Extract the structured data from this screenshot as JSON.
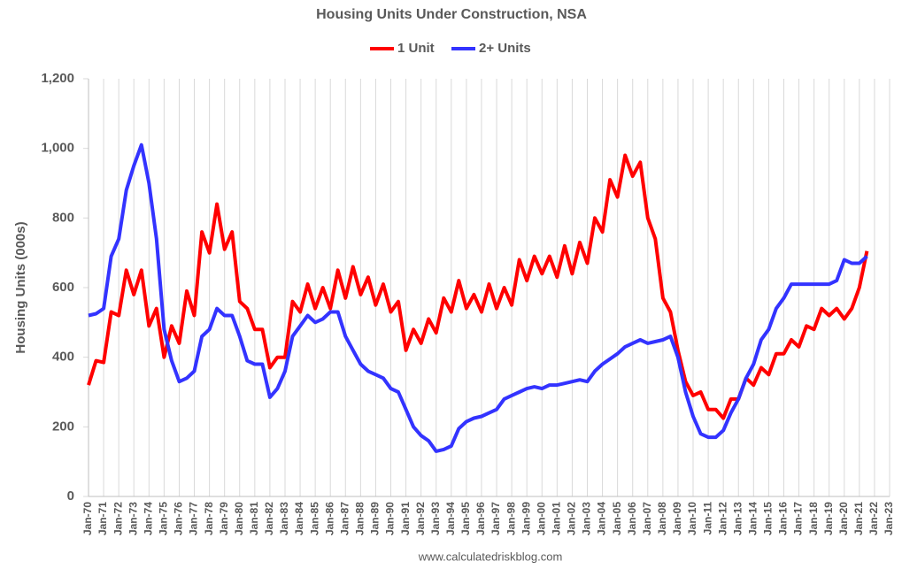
{
  "chart_data": {
    "type": "line",
    "title": "Housing Units Under Construction, NSA",
    "y_label": "Housing Units (000s)",
    "source": "www.calculatedriskblog.com",
    "legend": "top",
    "grid": true,
    "ylim": [
      0,
      1200
    ],
    "yticks": [
      0,
      200,
      400,
      600,
      800,
      {
        "value": 1000,
        "label": "1,000"
      },
      {
        "value": 1200,
        "label": "1,200"
      }
    ],
    "xticks": [
      "Jan-70",
      "Jan-71",
      "Jan-72",
      "Jan-73",
      "Jan-74",
      "Jan-75",
      "Jan-76",
      "Jan-77",
      "Jan-78",
      "Jan-79",
      "Jan-80",
      "Jan-81",
      "Jan-82",
      "Jan-83",
      "Jan-84",
      "Jan-85",
      "Jan-86",
      "Jan-87",
      "Jan-88",
      "Jan-89",
      "Jan-90",
      "Jan-91",
      "Jan-92",
      "Jan-93",
      "Jan-94",
      "Jan-95",
      "Jan-96",
      "Jan-97",
      "Jan-98",
      "Jan-99",
      "Jan-00",
      "Jan-01",
      "Jan-02",
      "Jan-03",
      "Jan-04",
      "Jan-05",
      "Jan-06",
      "Jan-07",
      "Jan-08",
      "Jan-09",
      "Jan-10",
      "Jan-11",
      "Jan-12",
      "Jan-13",
      "Jan-14",
      "Jan-15",
      "Jan-16",
      "Jan-17",
      "Jan-18",
      "Jan-19",
      "Jan-20",
      "Jan-21",
      "Jan-22",
      "Jan-23"
    ],
    "x": [
      "Jan-70",
      "Jul-70",
      "Jan-71",
      "Jul-71",
      "Jan-72",
      "Jul-72",
      "Jan-73",
      "Jul-73",
      "Jan-74",
      "Jul-74",
      "Jan-75",
      "Jul-75",
      "Jan-76",
      "Jul-76",
      "Jan-77",
      "Jul-77",
      "Jan-78",
      "Jul-78",
      "Jan-79",
      "Jul-79",
      "Jan-80",
      "Jul-80",
      "Jan-81",
      "Jul-81",
      "Jan-82",
      "Jul-82",
      "Jan-83",
      "Jul-83",
      "Jan-84",
      "Jul-84",
      "Jan-85",
      "Jul-85",
      "Jan-86",
      "Jul-86",
      "Jan-87",
      "Jul-87",
      "Jan-88",
      "Jul-88",
      "Jan-89",
      "Jul-89",
      "Jan-90",
      "Jul-90",
      "Jan-91",
      "Jul-91",
      "Jan-92",
      "Jul-92",
      "Jan-93",
      "Jul-93",
      "Jan-94",
      "Jul-94",
      "Jan-95",
      "Jul-95",
      "Jan-96",
      "Jul-96",
      "Jan-97",
      "Jul-97",
      "Jan-98",
      "Jul-98",
      "Jan-99",
      "Jul-99",
      "Jan-00",
      "Jul-00",
      "Jan-01",
      "Jul-01",
      "Jan-02",
      "Jul-02",
      "Jan-03",
      "Jul-03",
      "Jan-04",
      "Jul-04",
      "Jan-05",
      "Jul-05",
      "Jan-06",
      "Jul-06",
      "Jan-07",
      "Jul-07",
      "Jan-08",
      "Jul-08",
      "Jan-09",
      "Jul-09",
      "Jan-10",
      "Jul-10",
      "Jan-11",
      "Jul-11",
      "Jan-12",
      "Jul-12",
      "Jan-13",
      "Jul-13",
      "Jan-14",
      "Jul-14",
      "Jan-15",
      "Jul-15",
      "Jan-16",
      "Jul-16",
      "Jan-17",
      "Jul-17",
      "Jan-18",
      "Jul-18",
      "Jan-19",
      "Jul-19",
      "Jan-20",
      "Jul-20",
      "Jan-21",
      "Jul-21"
    ],
    "series": [
      {
        "name": "1 Unit",
        "color": "#ff0000",
        "values": [
          320,
          390,
          385,
          530,
          520,
          650,
          580,
          650,
          490,
          540,
          400,
          490,
          440,
          590,
          520,
          760,
          700,
          840,
          710,
          760,
          560,
          540,
          480,
          480,
          370,
          400,
          400,
          560,
          530,
          610,
          540,
          600,
          540,
          650,
          570,
          660,
          580,
          630,
          550,
          610,
          530,
          560,
          420,
          480,
          440,
          510,
          470,
          570,
          530,
          620,
          540,
          580,
          530,
          610,
          540,
          600,
          550,
          680,
          620,
          690,
          640,
          690,
          630,
          720,
          640,
          730,
          670,
          800,
          760,
          910,
          860,
          980,
          920,
          960,
          800,
          740,
          570,
          530,
          420,
          330,
          290,
          300,
          250,
          250,
          225,
          280,
          280,
          340,
          320,
          370,
          350,
          410,
          410,
          450,
          430,
          490,
          480,
          540,
          520,
          540,
          510,
          540,
          600,
          705
        ]
      },
      {
        "name": "2+ Units",
        "color": "#3333ff",
        "values": [
          520,
          525,
          540,
          690,
          740,
          880,
          950,
          1010,
          900,
          740,
          480,
          390,
          330,
          340,
          360,
          460,
          480,
          540,
          520,
          520,
          460,
          390,
          380,
          380,
          285,
          310,
          360,
          460,
          490,
          520,
          500,
          510,
          530,
          530,
          460,
          420,
          380,
          360,
          350,
          340,
          310,
          300,
          250,
          200,
          175,
          160,
          130,
          135,
          145,
          195,
          215,
          225,
          230,
          240,
          250,
          280,
          290,
          300,
          310,
          315,
          310,
          320,
          320,
          325,
          330,
          335,
          330,
          360,
          380,
          395,
          410,
          430,
          440,
          450,
          440,
          445,
          450,
          460,
          400,
          300,
          230,
          180,
          170,
          170,
          190,
          240,
          280,
          340,
          380,
          450,
          480,
          540,
          570,
          610,
          610,
          610,
          610,
          610,
          610,
          620,
          680,
          670,
          670,
          690
        ]
      }
    ]
  }
}
